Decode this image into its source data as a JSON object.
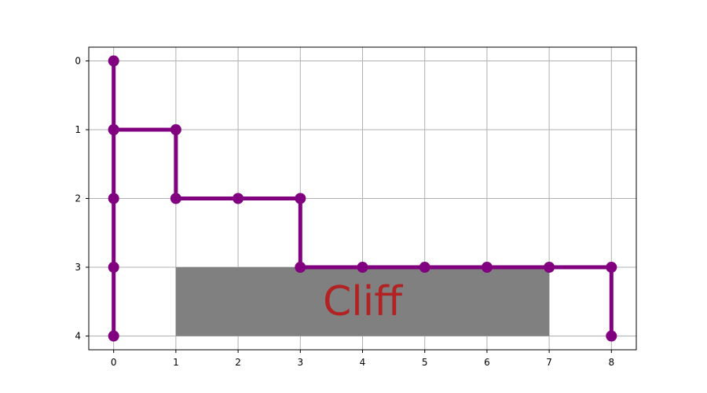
{
  "chart_data": {
    "type": "line",
    "title": "",
    "xlabel": "",
    "ylabel": "",
    "xlim": [
      -0.4,
      8.4
    ],
    "ylim": [
      4.2,
      -0.2
    ],
    "y_inverted": true,
    "grid": true,
    "x_ticks": [
      0,
      1,
      2,
      3,
      4,
      5,
      6,
      7,
      8
    ],
    "y_ticks": [
      0,
      1,
      2,
      3,
      4
    ],
    "series": [
      {
        "color": "#800080",
        "marker": "circle",
        "points": [
          [
            0,
            4
          ],
          [
            0,
            3
          ],
          [
            0,
            2
          ],
          [
            0,
            1
          ],
          [
            0,
            0
          ],
          [
            0,
            1
          ],
          [
            1,
            1
          ],
          [
            1,
            2
          ],
          [
            2,
            2
          ],
          [
            3,
            2
          ],
          [
            3,
            3
          ],
          [
            4,
            3
          ],
          [
            5,
            3
          ],
          [
            6,
            3
          ],
          [
            7,
            3
          ],
          [
            8,
            3
          ],
          [
            8,
            4
          ]
        ]
      }
    ],
    "regions": [
      {
        "label": "Cliff",
        "x_range": [
          1,
          7
        ],
        "y_range": [
          3,
          4
        ],
        "fill_color": "#808080",
        "label_color": "#b22222"
      }
    ]
  }
}
